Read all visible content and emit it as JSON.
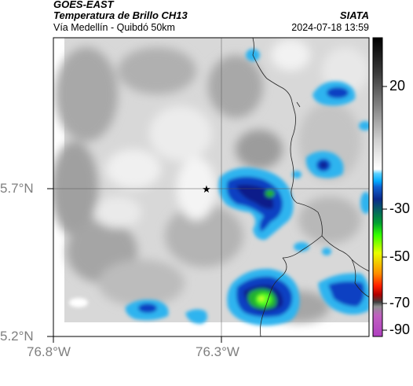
{
  "header": {
    "satellite": "GOES-EAST",
    "product": "Temperatura de Brillo CH13",
    "region": "Vía Medellín - Quibdó 50km",
    "agency": "SIATA",
    "datetime": "2024-07-18 13:59"
  },
  "axes": {
    "lon_ticks": [
      "76.8°W",
      "76.3°W"
    ],
    "lat_ticks": [
      "5.7°N",
      "5.2°N"
    ]
  },
  "colorbar": {
    "labels": [
      "20",
      "-30",
      "-50",
      "-70",
      "-90"
    ],
    "colors": [
      "#000000",
      "#3c3c3c",
      "#8a8a8a",
      "#cfcfcf",
      "#ffffff",
      "#5ad0ff",
      "#00aaff",
      "#1060d0",
      "#0a2a8c",
      "#00a030",
      "#33ff00",
      "#e8ff00",
      "#ff8c00",
      "#ff2000",
      "#b00000",
      "#404040",
      "#909090",
      "#c060c0",
      "#b040c0"
    ]
  },
  "map": {
    "marker": "star-icon",
    "colors": {
      "light": "#e0e0e0",
      "mid": "#b8b8b8",
      "dark": "#8f8f8f",
      "cyan": "#2fb4ef",
      "blue": "#0a3fc2",
      "navy": "#0a1f8a",
      "green": "#22b030",
      "lime": "#50ff20",
      "yellow": "#c8ff30"
    }
  }
}
